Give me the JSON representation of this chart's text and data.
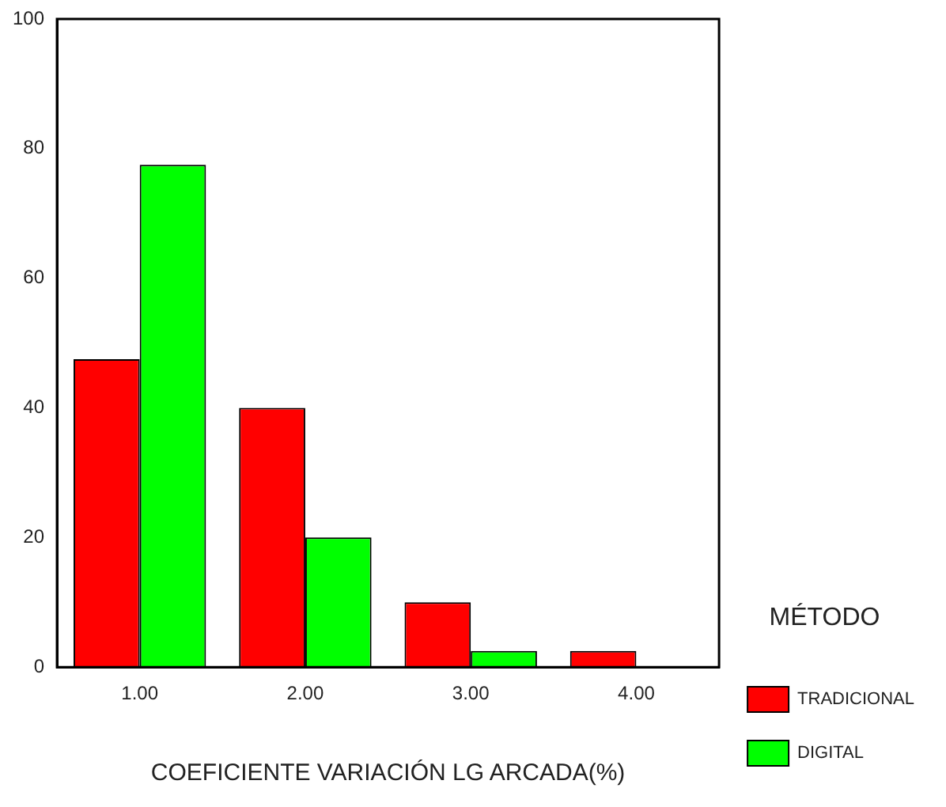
{
  "chart_data": {
    "type": "bar",
    "xlabel": "COEFICIENTE VARIACIÓN LG ARCADA(%)",
    "legend_title": "MÉTODO",
    "legend": "right",
    "categories": [
      "1.00",
      "2.00",
      "3.00",
      "4.00"
    ],
    "series": [
      {
        "name": "TRADICIONAL",
        "color": "#ff0000",
        "values": [
          47.5,
          40,
          10,
          2.5
        ]
      },
      {
        "name": "DIGITAL",
        "color": "#00ff00",
        "values": [
          77.5,
          20,
          2.5,
          0
        ]
      }
    ],
    "ylim": [
      0,
      100
    ],
    "yticks": [
      0,
      20,
      40,
      60,
      80,
      100
    ],
    "grid": false
  }
}
